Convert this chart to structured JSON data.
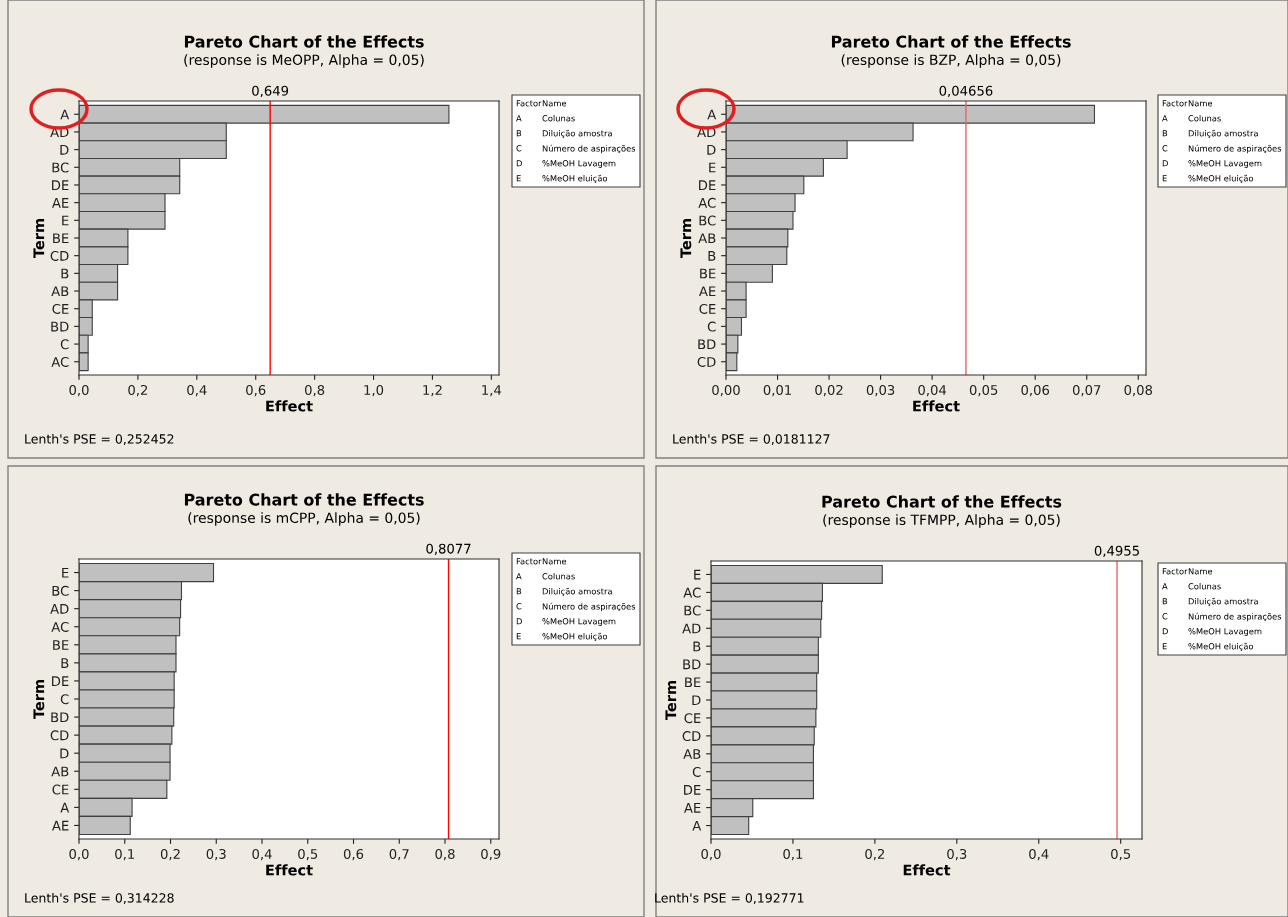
{
  "chart_data": [
    {
      "type": "bar",
      "orientation": "horizontal",
      "title": "Pareto Chart of the Effects",
      "subtitle": "(response is MeOPP, Alpha = 0,05)",
      "xlabel": "Effect",
      "ylabel": "Term",
      "color": "#c0c0c0",
      "categories": [
        "A",
        "AD",
        "D",
        "BC",
        "DE",
        "AE",
        "E",
        "BE",
        "CD",
        "B",
        "AB",
        "CE",
        "BD",
        "C",
        "AC"
      ],
      "values": [
        1.256,
        0.5,
        0.5,
        0.342,
        0.342,
        0.292,
        0.292,
        0.166,
        0.166,
        0.131,
        0.131,
        0.045,
        0.045,
        0.031,
        0.031
      ],
      "xlim": [
        0,
        1.426
      ],
      "xticks": [
        {
          "value": 0,
          "label": "0,0"
        },
        {
          "value": 0.2,
          "label": "0,2"
        },
        {
          "value": 0.4,
          "label": "0,4"
        },
        {
          "value": 0.6,
          "label": "0,6"
        },
        {
          "value": 0.8,
          "label": "0,8"
        },
        {
          "value": 1.0,
          "label": "1,0"
        },
        {
          "value": 1.2,
          "label": "1,2"
        },
        {
          "value": 1.4,
          "label": "1,4"
        }
      ],
      "ref_lines": [
        {
          "axis": "x",
          "value": 0.649,
          "label": "0,649",
          "color": "#ff0000"
        }
      ],
      "annotations": [
        "Lenth's PSE = 0,252452",
        "Factor",
        "Name",
        "A",
        "Colunas",
        "B",
        "Diluição amostra",
        "C",
        "Número de aspirações",
        "D",
        "%MeOH Lavagem",
        "E",
        "%MeOH eluição"
      ]
    },
    {
      "type": "bar",
      "orientation": "horizontal",
      "title": "Pareto Chart of the Effects",
      "subtitle": "(response is BZP, Alpha = 0,05)",
      "xlabel": "Effect",
      "ylabel": "Term",
      "color": "#c0c0c0",
      "categories": [
        "A",
        "AD",
        "D",
        "E",
        "DE",
        "AC",
        "BC",
        "AB",
        "B",
        "BE",
        "AE",
        "CE",
        "C",
        "BD",
        "CD"
      ],
      "values": [
        0.0715,
        0.0363,
        0.0235,
        0.0189,
        0.0151,
        0.0134,
        0.013,
        0.012,
        0.0118,
        0.009,
        0.0039,
        0.0039,
        0.003,
        0.0023,
        0.0021
      ],
      "xlim": [
        0,
        0.0815
      ],
      "xticks": [
        {
          "value": 0,
          "label": "0,00"
        },
        {
          "value": 0.01,
          "label": "0,01"
        },
        {
          "value": 0.02,
          "label": "0,02"
        },
        {
          "value": 0.03,
          "label": "0,03"
        },
        {
          "value": 0.04,
          "label": "0,04"
        },
        {
          "value": 0.05,
          "label": "0,05"
        },
        {
          "value": 0.06,
          "label": "0,06"
        },
        {
          "value": 0.07,
          "label": "0,07"
        },
        {
          "value": 0.08,
          "label": "0,08"
        }
      ],
      "ref_lines": [
        {
          "axis": "x",
          "value": 0.04656,
          "label": "0,04656",
          "color": "#f06060"
        }
      ],
      "annotations": [
        "Lenth's PSE = 0,0181127",
        "Factor",
        "Name",
        "A",
        "Colunas",
        "B",
        "Diluição amostra",
        "C",
        "Número de aspirações",
        "D",
        "%MeOH Lavagem",
        "E",
        "%MeOH eluição"
      ]
    },
    {
      "type": "bar",
      "orientation": "horizontal",
      "title": "Pareto Chart of the Effects",
      "subtitle": "(response is mCPP, Alpha = 0,05)",
      "xlabel": "Effect",
      "ylabel": "Term",
      "color": "#c0c0c0",
      "categories": [
        "E",
        "BC",
        "AD",
        "AC",
        "BE",
        "B",
        "DE",
        "C",
        "BD",
        "CD",
        "D",
        "AB",
        "CE",
        "A",
        "AE"
      ],
      "values": [
        0.294,
        0.224,
        0.222,
        0.22,
        0.212,
        0.212,
        0.208,
        0.208,
        0.207,
        0.203,
        0.199,
        0.199,
        0.192,
        0.116,
        0.112
      ],
      "xlim": [
        0,
        0.918
      ],
      "xticks": [
        {
          "value": 0,
          "label": "0,0"
        },
        {
          "value": 0.1,
          "label": "0,1"
        },
        {
          "value": 0.2,
          "label": "0,2"
        },
        {
          "value": 0.3,
          "label": "0,3"
        },
        {
          "value": 0.4,
          "label": "0,4"
        },
        {
          "value": 0.5,
          "label": "0,5"
        },
        {
          "value": 0.6,
          "label": "0,6"
        },
        {
          "value": 0.7,
          "label": "0,7"
        },
        {
          "value": 0.8,
          "label": "0,8"
        },
        {
          "value": 0.9,
          "label": "0,9"
        }
      ],
      "ref_lines": [
        {
          "axis": "x",
          "value": 0.8077,
          "label": "0,8077",
          "color": "#ff0000"
        }
      ],
      "annotations": [
        "Lenth's PSE = 0,314228",
        "Factor",
        "Name",
        "A",
        "Colunas",
        "B",
        "Diluição amostra",
        "C",
        "Número de aspirações",
        "D",
        "%MeOH Lavagem",
        "E",
        "%MeOH eluição"
      ]
    },
    {
      "type": "bar",
      "orientation": "horizontal",
      "title": "Pareto Chart of the Effects",
      "subtitle": "(response is TFMPP, Alpha = 0,05)",
      "xlabel": "Effect",
      "ylabel": "Term",
      "color": "#c0c0c0",
      "categories": [
        "E",
        "AC",
        "BC",
        "AD",
        "B",
        "BD",
        "BE",
        "D",
        "CE",
        "CD",
        "AB",
        "C",
        "DE",
        "AE",
        "A"
      ],
      "values": [
        0.209,
        0.136,
        0.135,
        0.134,
        0.131,
        0.131,
        0.129,
        0.129,
        0.128,
        0.126,
        0.125,
        0.125,
        0.125,
        0.051,
        0.046
      ],
      "xlim": [
        0,
        0.526
      ],
      "xticks": [
        {
          "value": 0,
          "label": "0,0"
        },
        {
          "value": 0.1,
          "label": "0,1"
        },
        {
          "value": 0.2,
          "label": "0,2"
        },
        {
          "value": 0.3,
          "label": "0,3"
        },
        {
          "value": 0.4,
          "label": "0,4"
        },
        {
          "value": 0.5,
          "label": "0,5"
        }
      ],
      "ref_lines": [
        {
          "axis": "x",
          "value": 0.4955,
          "label": "0,4955",
          "color": "#f06060"
        }
      ],
      "annotations": [
        "Lenth's PSE = 0,192771",
        "Factor",
        "Name",
        "A",
        "Colunas",
        "B",
        "Diluição amostra",
        "C",
        "Número de aspirações",
        "D",
        "%MeOH Lavagem",
        "E",
        "%MeOH eluição"
      ]
    }
  ]
}
